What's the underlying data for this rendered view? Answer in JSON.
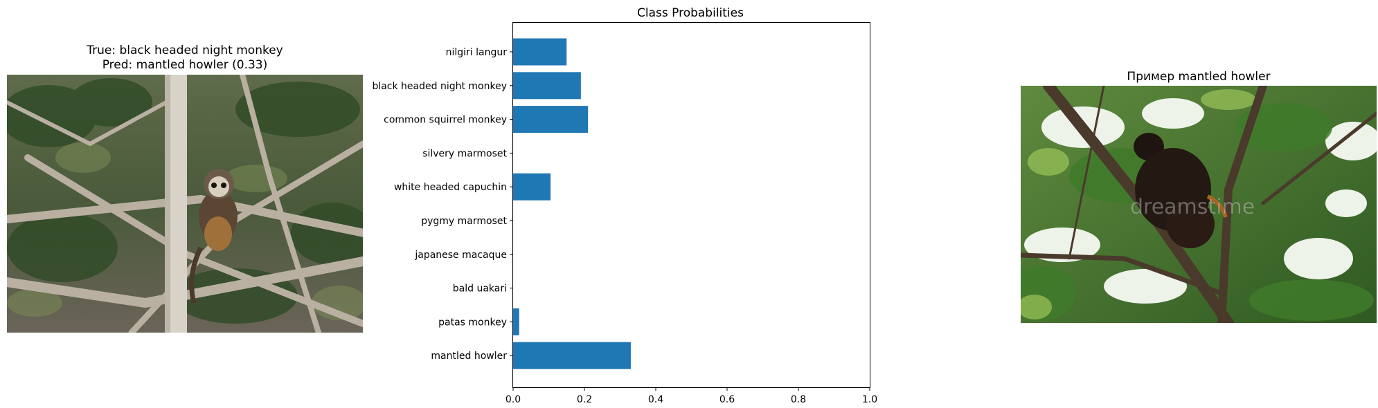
{
  "left_panel": {
    "title_line1": "True: black headed night monkey",
    "title_line2": "Pred: mantled howler (0.33)",
    "image_icon": "monkey-photo"
  },
  "right_panel": {
    "title": "Пример mantled howler",
    "image_icon": "monkey-photo",
    "watermark": "dreamstime"
  },
  "chart_data": {
    "type": "bar",
    "orientation": "horizontal",
    "title": "Class Probabilities",
    "xlabel": "",
    "ylabel": "",
    "xlim": [
      0,
      1.0
    ],
    "xticks": [
      "0.0",
      "0.2",
      "0.4",
      "0.6",
      "0.8",
      "1.0"
    ],
    "categories": [
      "nilgiri langur",
      "black headed night monkey",
      "common squirrel monkey",
      "silvery marmoset",
      "white headed capuchin",
      "pygmy marmoset",
      "japanese macaque",
      "bald uakari",
      "patas monkey",
      "mantled howler"
    ],
    "values": [
      0.15,
      0.19,
      0.21,
      0.0,
      0.105,
      0.0,
      0.0,
      0.0,
      0.017,
      0.33
    ],
    "bar_color": "#1f77b4",
    "grid": false
  }
}
